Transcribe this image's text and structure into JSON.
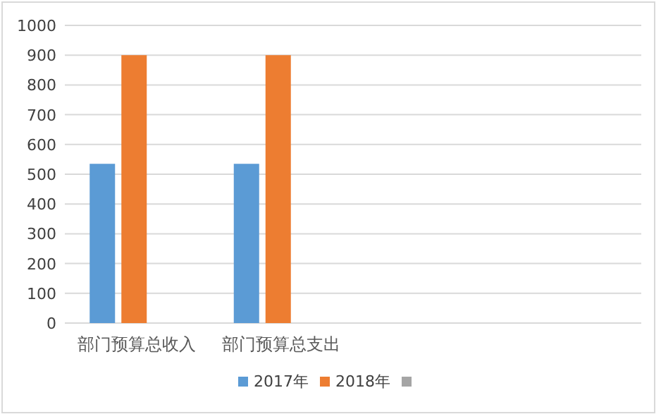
{
  "chart_data": {
    "type": "bar",
    "categories": [
      "部门预算总收入",
      "部门预算总支出",
      null,
      null
    ],
    "series": [
      {
        "name": "2017年",
        "color": "#5b9bd5",
        "values": [
          535,
          535,
          null,
          null
        ]
      },
      {
        "name": "2018年",
        "color": "#ed7d31",
        "values": [
          900,
          900,
          null,
          null
        ]
      },
      {
        "color": "#a5a5a5",
        "values": [
          null,
          null,
          null,
          null
        ]
      }
    ],
    "ylim": [
      0,
      1000
    ],
    "yticks": [
      0,
      100,
      200,
      300,
      400,
      500,
      600,
      700,
      800,
      900,
      1000
    ],
    "grid": "y",
    "legend": "bottom"
  }
}
